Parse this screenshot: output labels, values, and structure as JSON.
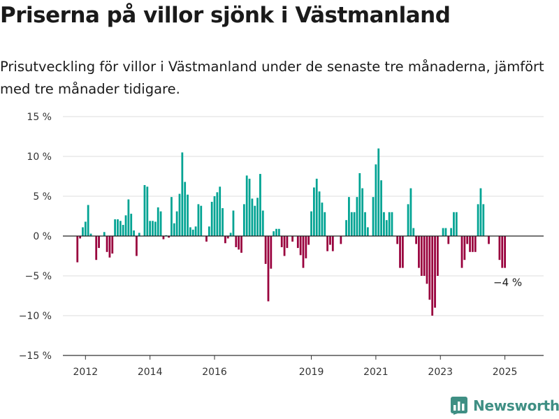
{
  "title": "Priserna på villor sjönk i Västmanland",
  "subtitle": "Prisutveckling för villor i Västmanland under de senaste tre månaderna, jämfört med tre månader tidigare.",
  "brand": {
    "name": "Newsworthy",
    "color": "#3f8f84",
    "logo_icon": "bar-chart-logo-icon"
  },
  "colors": {
    "positive": "#00a393",
    "negative": "#99003d",
    "grid": "#dddddd",
    "axis": "#333333"
  },
  "chart_data": {
    "type": "bar",
    "x_start": 2011.75,
    "x_step": 0.0833333,
    "values": [
      -3.3,
      -0.3,
      1.1,
      1.8,
      3.9,
      0.3,
      0,
      -3,
      -1.5,
      0,
      0.5,
      -2,
      -2.7,
      -2.2,
      2.1,
      2.1,
      1.9,
      1.4,
      2.6,
      4.6,
      2.8,
      0.7,
      -2.5,
      0.4,
      0,
      6.4,
      6.2,
      1.9,
      1.9,
      1.8,
      3.6,
      3.1,
      -0.4,
      0.1,
      -0.2,
      4.9,
      1.6,
      3.1,
      5.3,
      10.5,
      6.8,
      5.2,
      1.1,
      0.8,
      1.2,
      4,
      3.8,
      0,
      -0.7,
      1.2,
      4.3,
      5,
      5.5,
      6.2,
      3.5,
      -0.9,
      -0.3,
      0.4,
      3.2,
      -1.4,
      -1.7,
      -2.1,
      4,
      7.6,
      7.2,
      4.7,
      3.8,
      4.8,
      7.8,
      3.2,
      -3.5,
      -8.2,
      -4.1,
      0.6,
      0.9,
      0.9,
      -1.4,
      -2.5,
      -1.5,
      0,
      -0.7,
      0,
      -1.5,
      -2.4,
      -4,
      -2.8,
      -1.1,
      3.1,
      6.1,
      7.2,
      5.6,
      4.2,
      3,
      -1.9,
      -1.1,
      -1.9,
      0,
      0,
      -1,
      0,
      2,
      4.9,
      3,
      3,
      4.9,
      7.9,
      6,
      3,
      1.1,
      0,
      4.9,
      9,
      11,
      7,
      3,
      2,
      3,
      3,
      0,
      -1,
      -4,
      -4,
      0,
      4,
      6,
      1,
      -1,
      -4,
      -5,
      -5,
      -6,
      -8,
      -10,
      -9,
      -5,
      0,
      1,
      1,
      -1,
      1,
      3,
      3,
      0,
      -4,
      -3,
      -1,
      -2,
      -2,
      -2,
      4,
      6,
      4,
      0,
      -1,
      0,
      0,
      0,
      -3,
      -4,
      -4
    ],
    "xticks": [
      {
        "value": 2012,
        "label": "2012"
      },
      {
        "value": 2014,
        "label": "2014"
      },
      {
        "value": 2016,
        "label": "2016"
      },
      {
        "value": 2019,
        "label": "2019"
      },
      {
        "value": 2021,
        "label": "2021"
      },
      {
        "value": 2023,
        "label": "2023"
      },
      {
        "value": 2025,
        "label": "2025"
      }
    ],
    "yticks": [
      {
        "value": 15,
        "label": "15 %"
      },
      {
        "value": 10,
        "label": "10 %"
      },
      {
        "value": 5,
        "label": "5 %"
      },
      {
        "value": 0,
        "label": "0 %"
      },
      {
        "value": -5,
        "label": "−5 %"
      },
      {
        "value": -10,
        "label": "−10 %"
      },
      {
        "value": -15,
        "label": "−15 %"
      }
    ],
    "xlim": [
      2011.3,
      2026.2
    ],
    "ylim": [
      -15,
      15
    ],
    "grid": true,
    "annotation": {
      "label": "−4 %",
      "value": -4
    }
  }
}
